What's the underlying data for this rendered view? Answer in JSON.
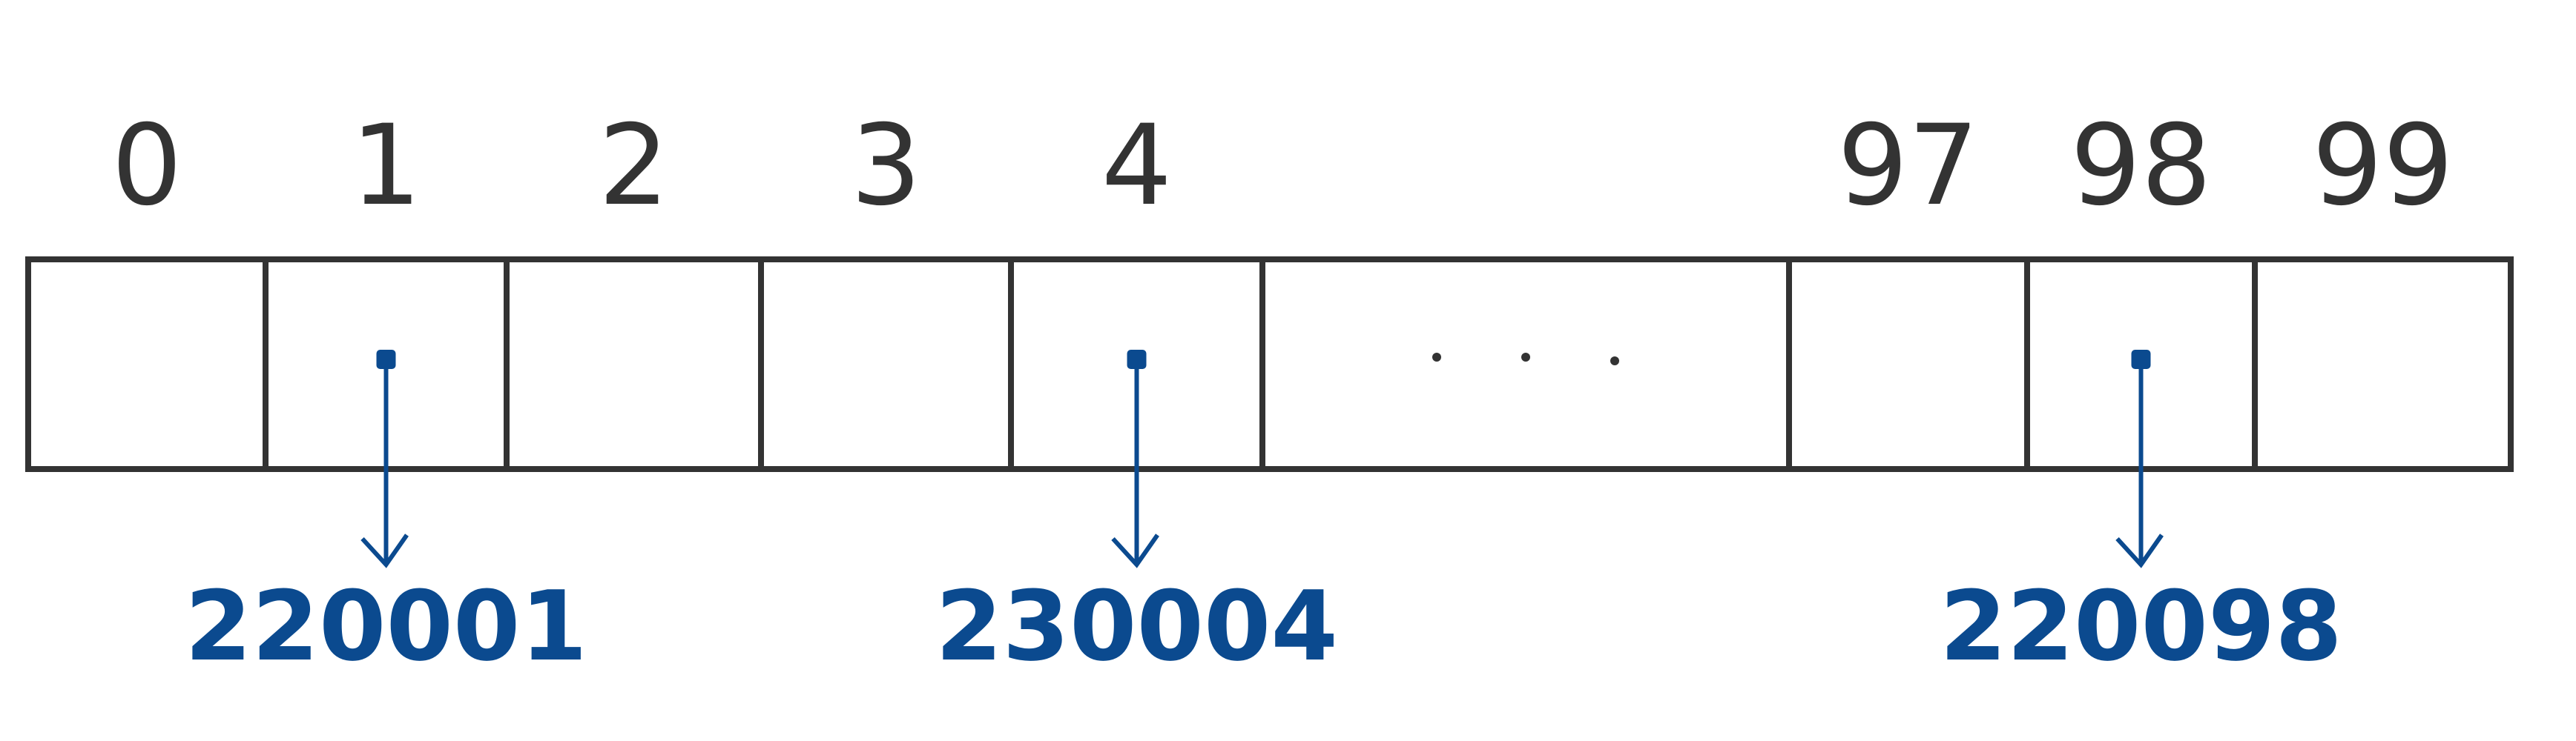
{
  "colors": {
    "outline": "#333333",
    "pointer": "#0b4a8f"
  },
  "array": {
    "cells": [
      {
        "index": "0",
        "pointer": false
      },
      {
        "index": "1",
        "pointer": true,
        "value": "220001"
      },
      {
        "index": "2",
        "pointer": false
      },
      {
        "index": "3",
        "pointer": false
      },
      {
        "index": "4",
        "pointer": true,
        "value": "230004"
      },
      {
        "index": "",
        "ellipsis": true
      },
      {
        "index": "97",
        "pointer": false
      },
      {
        "index": "98",
        "pointer": true,
        "value": "220098"
      },
      {
        "index": "99",
        "pointer": false
      }
    ]
  }
}
